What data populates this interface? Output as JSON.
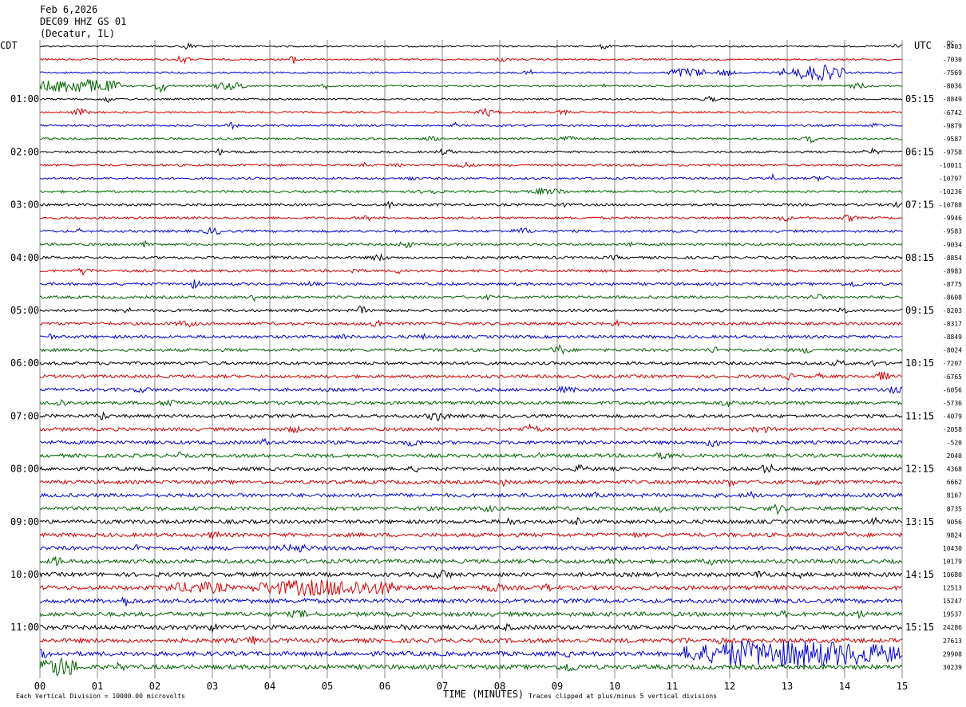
{
  "header": {
    "date": "Feb 6,2026",
    "station": "DEC09 HHZ GS 01",
    "location": "(Decatur, IL)"
  },
  "chart_data": {
    "type": "line",
    "title": "",
    "xlabel": "TIME (MINUTES)",
    "x_ticks": [
      "00",
      "01",
      "02",
      "03",
      "04",
      "05",
      "06",
      "07",
      "08",
      "09",
      "10",
      "11",
      "12",
      "13",
      "14",
      "15"
    ],
    "xlim": [
      0,
      15
    ],
    "left_tz": "CDT",
    "right_tz": "UTC",
    "right_top_label": "DC",
    "grid": true,
    "trace_colors": [
      "#000000",
      "#d40000",
      "#0000d4",
      "#006400"
    ],
    "trace_count": 48,
    "left_hour_labels": [
      "01:00",
      "02:00",
      "03:00",
      "04:00",
      "05:00",
      "06:00",
      "07:00",
      "08:00",
      "09:00",
      "10:00",
      "11:00"
    ],
    "right_hour_labels": [
      "05:15",
      "06:15",
      "07:15",
      "08:15",
      "09:15",
      "10:15",
      "11:15",
      "12:15",
      "13:15",
      "14:15",
      "15:15"
    ],
    "dc_offsets": [
      "-8403",
      "-7030",
      "-7569",
      "-8036",
      "-8849",
      "-6742",
      "-9879",
      "-9587",
      "-9758",
      "-10011",
      "-10797",
      "-10236",
      "-10788",
      "-9946",
      "-9583",
      "-9034",
      "-8854",
      "-8983",
      "-8775",
      "-8608",
      "-8203",
      "-8317",
      "-8849",
      "-8024",
      "-7207",
      "-6765",
      "-6056",
      "-5736",
      "-4079",
      "-2058",
      "-520",
      "2040",
      "4368",
      "6662",
      "8167",
      "8735",
      "9056",
      "9824",
      "10430",
      "10179",
      "10680",
      "12513",
      "15247",
      "19537",
      "24286",
      "27613",
      "29908",
      "30239"
    ],
    "footer_left": "Each Vertical Division = 10000.00 microvolts",
    "footer_right": "Traces clipped at plus/minus 5 vertical divisions"
  }
}
